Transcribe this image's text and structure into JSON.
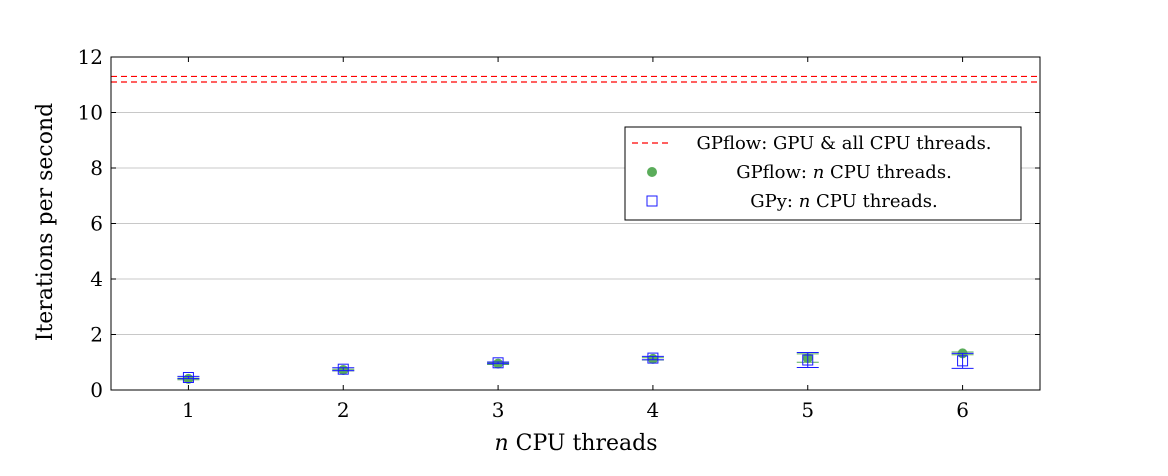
{
  "chart_data": {
    "type": "scatter",
    "xlabel_var": "n",
    "xlabel_rest": " CPU threads",
    "ylabel": "Iterations per second",
    "xlim": [
      0.5,
      6.5
    ],
    "ylim": [
      0,
      12
    ],
    "x_ticks": [
      1,
      2,
      3,
      4,
      5,
      6
    ],
    "y_ticks": [
      0,
      2,
      4,
      6,
      8,
      10,
      12
    ],
    "grid": "horizontal",
    "legend_position": "upper-right",
    "gpu_band": {
      "label": "GPflow: GPU & all CPU threads.",
      "color": "#ff0000",
      "lower": 11.1,
      "upper": 11.3
    },
    "series": [
      {
        "name_prefix": "GPflow: ",
        "name_var": "n",
        "name_suffix": " CPU threads.",
        "marker": "circle",
        "color": "#5aac5a",
        "x": [
          1,
          2,
          3,
          4,
          5,
          6
        ],
        "y": [
          0.4,
          0.72,
          0.95,
          1.12,
          1.15,
          1.32
        ],
        "err": [
          0.03,
          0.03,
          0.03,
          0.04,
          0.15,
          0.05
        ]
      },
      {
        "name_prefix": "GPy: ",
        "name_var": "n",
        "name_suffix": " CPU threads.",
        "marker": "square",
        "color": "#1a1aff",
        "x": [
          1,
          2,
          3,
          4,
          5,
          6
        ],
        "y": [
          0.45,
          0.75,
          0.98,
          1.15,
          1.08,
          1.05
        ],
        "err": [
          0.04,
          0.05,
          0.03,
          0.06,
          0.27,
          0.27
        ]
      }
    ]
  }
}
